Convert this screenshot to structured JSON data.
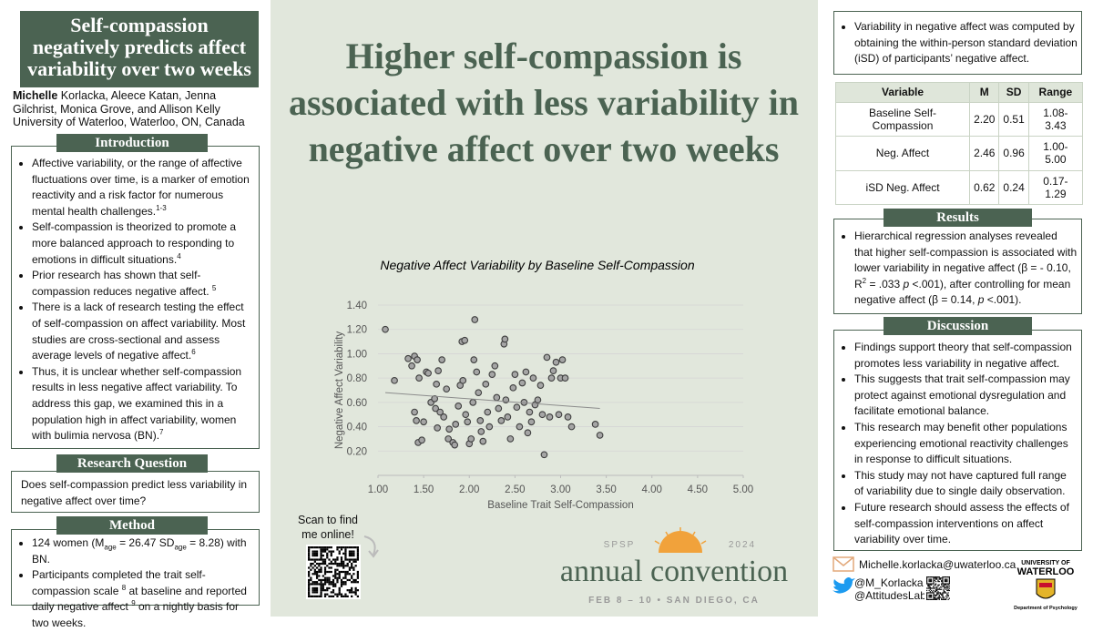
{
  "left": {
    "title": "Self-compassion negatively predicts affect variability over two weeks",
    "authors": [
      {
        "b": "Michelle"
      },
      {
        "t": " Korlacka, Aleece Katan, Jenna Gilchrist, Monica Grove, and Allison Kelly"
      }
    ],
    "affiliation": "University of Waterloo, Waterloo, ON, Canada",
    "introduction": {
      "heading": "Introduction",
      "items": [
        [
          {
            "t": "Affective variability, or the range of affective fluctuations over time, is a marker of emotion reactivity and a risk factor for numerous mental health challenges."
          },
          {
            "sup": "1-3"
          }
        ],
        [
          {
            "t": "Self-compassion is theorized to promote a more balanced approach to responding to emotions in difficult situations."
          },
          {
            "sup": "4"
          }
        ],
        [
          {
            "t": "Prior research has shown that self-compassion reduces negative affect. "
          },
          {
            "sup": "5"
          }
        ],
        [
          {
            "t": "There is a lack of research testing the effect of self-compassion on affect variability. Most studies are cross-sectional and assess average levels of negative affect."
          },
          {
            "sup": "6"
          }
        ],
        [
          {
            "t": "Thus, it is unclear whether self-compassion results in less negative affect variability. To address this gap, we examined this in a population high in affect variability, women with bulimia nervosa (BN)."
          },
          {
            "sup": "7"
          }
        ]
      ]
    },
    "research_question": {
      "heading": "Research Question",
      "text": "Does self-compassion predict less variability in negative affect over time?"
    },
    "method": {
      "heading": "Method",
      "items": [
        [
          {
            "t": "124 women (M"
          },
          {
            "sub": "age"
          },
          {
            "t": " = 26.47 SD"
          },
          {
            "sub": "age"
          },
          {
            "t": " = 8.28) with BN."
          }
        ],
        [
          {
            "t": "Participants completed the trait self-compassion scale "
          },
          {
            "sup": "8"
          },
          {
            "t": " at baseline and reported daily negative affect "
          },
          {
            "sup": "9"
          },
          {
            "t": " on a nightly basis for two weeks."
          }
        ]
      ]
    }
  },
  "center": {
    "headline": "Higher self-compassion is associated with less variability in negative affect over two weeks",
    "qr_caption": "Scan to find me online!",
    "convention": {
      "org": "SPSP",
      "year": "2024",
      "name": "annual convention",
      "dates": "FEB 8 – 10 • SAN DIEGO, CA"
    }
  },
  "chart_data": {
    "type": "scatter",
    "title": "Negative Affect Variability by Baseline Self-Compassion",
    "x_label": "Baseline Trait Self-Compassion",
    "y_label": "Negative Affect Variability",
    "color": "#a5a5a5",
    "grid": true,
    "xlim": [
      1,
      5
    ],
    "xticks": [
      {
        "value": 1,
        "label": "1.00"
      },
      {
        "value": 1.5,
        "label": "1.50"
      },
      {
        "value": 2,
        "label": "2.00"
      },
      {
        "value": 2.5,
        "label": "2.50"
      },
      {
        "value": 3,
        "label": "3.00"
      },
      {
        "value": 3.5,
        "label": "3.50"
      },
      {
        "value": 4,
        "label": "4.00"
      },
      {
        "value": 4.5,
        "label": "4.50"
      },
      {
        "value": 5,
        "label": "5.00"
      }
    ],
    "ylim": [
      0,
      1.4
    ],
    "yticks": [
      {
        "value": 0.2,
        "label": "0.20"
      },
      {
        "value": 0.4,
        "label": "0.40"
      },
      {
        "value": 0.6,
        "label": "0.60"
      },
      {
        "value": 0.8,
        "label": "0.80"
      },
      {
        "value": 1.0,
        "label": "1.00"
      },
      {
        "value": 1.2,
        "label": "1.20"
      },
      {
        "value": 1.4,
        "label": "1.40"
      }
    ],
    "x": [
      1.08,
      1.18,
      1.33,
      1.37,
      1.4,
      1.43,
      1.45,
      1.4,
      1.42,
      1.44,
      1.48,
      1.5,
      1.53,
      1.55,
      1.58,
      1.62,
      1.63,
      1.64,
      1.66,
      1.68,
      1.65,
      1.7,
      1.72,
      1.75,
      1.77,
      1.78,
      1.82,
      1.84,
      1.85,
      1.88,
      1.9,
      1.92,
      1.95,
      1.93,
      1.96,
      1.98,
      2.0,
      2.02,
      2.04,
      2.05,
      2.06,
      2.08,
      2.1,
      2.12,
      2.13,
      2.15,
      2.18,
      2.2,
      2.22,
      2.25,
      2.28,
      2.3,
      2.32,
      2.35,
      2.38,
      2.39,
      2.4,
      2.42,
      2.45,
      2.48,
      2.5,
      2.52,
      2.55,
      2.58,
      2.6,
      2.62,
      2.64,
      2.66,
      2.68,
      2.7,
      2.72,
      2.75,
      2.78,
      2.8,
      2.82,
      2.85,
      2.88,
      2.9,
      2.92,
      2.95,
      2.98,
      3.0,
      3.02,
      3.05,
      3.08,
      3.12,
      3.38,
      3.43
    ],
    "values": [
      1.2,
      0.78,
      0.96,
      0.9,
      0.98,
      0.95,
      0.8,
      0.52,
      0.45,
      0.27,
      0.29,
      0.44,
      0.85,
      0.84,
      0.6,
      0.63,
      0.55,
      0.75,
      0.86,
      0.52,
      0.39,
      0.95,
      0.48,
      0.71,
      0.3,
      0.38,
      0.27,
      0.25,
      0.42,
      0.57,
      0.74,
      1.1,
      1.11,
      0.78,
      0.5,
      0.44,
      0.26,
      0.3,
      0.6,
      0.95,
      1.28,
      0.85,
      0.68,
      0.45,
      0.36,
      0.28,
      0.75,
      0.52,
      0.4,
      0.83,
      0.9,
      0.64,
      0.55,
      0.45,
      1.08,
      1.12,
      0.62,
      0.48,
      0.3,
      0.72,
      0.83,
      0.56,
      0.4,
      0.76,
      0.6,
      0.85,
      0.35,
      0.52,
      0.44,
      0.8,
      0.58,
      0.62,
      0.74,
      0.5,
      0.17,
      0.97,
      0.48,
      0.8,
      0.86,
      0.93,
      0.5,
      0.8,
      0.95,
      0.8,
      0.48,
      0.4,
      0.42,
      0.33
    ],
    "trendline": {
      "x": [
        1.08,
        3.43
      ],
      "y": [
        0.68,
        0.55
      ]
    }
  },
  "right": {
    "note": "Variability in negative affect was computed by obtaining the within-person standard deviation (iSD) of participants’ negative affect.",
    "table": {
      "header": [
        "Variable",
        "M",
        "SD",
        "Range"
      ],
      "rows": [
        [
          "Baseline Self-Compassion",
          "2.20",
          "0.51",
          "1.08-3.43"
        ],
        [
          "Neg. Affect",
          "2.46",
          "0.96",
          "1.00-5.00"
        ],
        [
          "iSD Neg. Affect",
          "0.62",
          "0.24",
          "0.17-1.29"
        ]
      ]
    },
    "results": {
      "heading": "Results",
      "items": [
        [
          {
            "t": "Hierarchical regression analyses revealed that higher self-compassion is associated with lower variability in negative affect (β = - 0.10, R"
          },
          {
            "sup": "2"
          },
          {
            "t": " = .033 "
          },
          {
            "i": "p"
          },
          {
            "t": " <.001), after controlling for mean negative affect (β = 0.14, "
          },
          {
            "i": "p"
          },
          {
            "t": " <.001)."
          }
        ]
      ]
    },
    "discussion": {
      "heading": "Discussion",
      "items": [
        "Findings support theory that self-compassion promotes less variability in negative affect.",
        "This suggests that trait self-compassion may protect against emotional dysregulation and facilitate emotional balance.",
        "This research may benefit other populations experiencing emotional  reactivity challenges in response to difficult situations.",
        "This study may not have captured full range of variability due to single daily observation.",
        "Future research should assess the effects of self-compassion interventions on affect variability over time."
      ]
    }
  },
  "contact": {
    "email": "Michelle.korlacka@uwaterloo.ca",
    "twitter": [
      "@M_Korlacka",
      "@AttitudesLab"
    ],
    "logo": {
      "line1": "UNIVERSITY OF",
      "line2": "WATERLOO",
      "dept": "Department of Psychology"
    }
  }
}
